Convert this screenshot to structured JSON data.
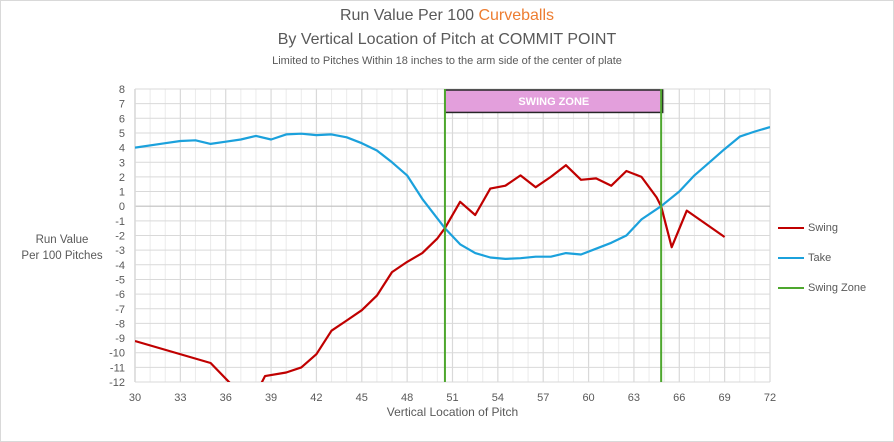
{
  "title": {
    "line1_prefix": "Run Value Per 100 ",
    "line1_accent": "Curveballs",
    "line2": "By Vertical Location of Pitch at COMMIT POINT",
    "line3": "Limited to Pitches Within 18 inches to the arm side of the center of plate"
  },
  "colors": {
    "accent": "#ed7d31",
    "swing": "#c00000",
    "take": "#1ba1dc",
    "swing_zone": "#4ea72e",
    "zone_box_fill": "#e39fdc",
    "zone_box_border": "#262626"
  },
  "chart_data": {
    "type": "line",
    "title": "Run Value Per 100 Curveballs — By Vertical Location of Pitch at COMMIT POINT",
    "subtitle": "Limited to Pitches Within 18 inches to the arm side of the center of plate",
    "xlabel": "Vertical Location of Pitch",
    "ylabel_lines": [
      "Run Value",
      "Per 100 Pitches"
    ],
    "xlim": [
      30,
      72
    ],
    "ylim": [
      -12,
      8
    ],
    "xticks": [
      30,
      33,
      36,
      39,
      42,
      45,
      48,
      51,
      54,
      57,
      60,
      63,
      66,
      69,
      72
    ],
    "yticks": [
      8,
      7,
      6,
      5,
      4,
      3,
      2,
      1,
      0,
      -1,
      -2,
      -3,
      -4,
      -5,
      -6,
      -7,
      -8,
      -9,
      -10,
      -11,
      -12
    ],
    "grid": true,
    "legend_position": "right",
    "series": [
      {
        "name": "Swing",
        "color": "#c00000",
        "points": [
          [
            30,
            -9.2
          ],
          [
            35,
            -10.7
          ],
          [
            36.4,
            -12.2
          ],
          [
            38.3,
            -12.2
          ],
          [
            38.6,
            -11.6
          ],
          [
            40,
            -11.35
          ],
          [
            41,
            -11.0
          ],
          [
            42,
            -10.1
          ],
          [
            43,
            -8.5
          ],
          [
            44,
            -7.8
          ],
          [
            45,
            -7.1
          ],
          [
            46,
            -6.1
          ],
          [
            47,
            -4.5
          ],
          [
            48,
            -3.8
          ],
          [
            49,
            -3.2
          ],
          [
            50,
            -2.2
          ],
          [
            50.5,
            -1.5
          ],
          [
            51.5,
            0.3
          ],
          [
            52.5,
            -0.6
          ],
          [
            53.5,
            1.2
          ],
          [
            54.5,
            1.4
          ],
          [
            55.5,
            2.1
          ],
          [
            56.5,
            1.3
          ],
          [
            57.5,
            2.0
          ],
          [
            58.5,
            2.8
          ],
          [
            59.5,
            1.8
          ],
          [
            60.5,
            1.9
          ],
          [
            61.5,
            1.4
          ],
          [
            62.5,
            2.4
          ],
          [
            63.5,
            2.0
          ],
          [
            64.5,
            0.6
          ],
          [
            64.8,
            0.0
          ],
          [
            65.5,
            -2.8
          ],
          [
            66.5,
            -0.3
          ],
          [
            69,
            -2.1
          ]
        ]
      },
      {
        "name": "Take",
        "color": "#1ba1dc",
        "points": [
          [
            30,
            4.0
          ],
          [
            32,
            4.3
          ],
          [
            33,
            4.45
          ],
          [
            34,
            4.5
          ],
          [
            35,
            4.25
          ],
          [
            36,
            4.4
          ],
          [
            37,
            4.55
          ],
          [
            38,
            4.8
          ],
          [
            39,
            4.55
          ],
          [
            40,
            4.9
          ],
          [
            41,
            4.95
          ],
          [
            42,
            4.85
          ],
          [
            43,
            4.9
          ],
          [
            44,
            4.7
          ],
          [
            45,
            4.3
          ],
          [
            46,
            3.8
          ],
          [
            47,
            3.0
          ],
          [
            48,
            2.1
          ],
          [
            49,
            0.5
          ],
          [
            50.5,
            -1.5
          ],
          [
            51.5,
            -2.6
          ],
          [
            52.5,
            -3.2
          ],
          [
            53.5,
            -3.5
          ],
          [
            54.5,
            -3.6
          ],
          [
            55.5,
            -3.55
          ],
          [
            56.5,
            -3.45
          ],
          [
            57.5,
            -3.45
          ],
          [
            58.5,
            -3.2
          ],
          [
            59.5,
            -3.3
          ],
          [
            60.5,
            -2.9
          ],
          [
            61.5,
            -2.5
          ],
          [
            62.5,
            -2.0
          ],
          [
            63.5,
            -0.9
          ],
          [
            64.8,
            0.0
          ],
          [
            66,
            1.0
          ],
          [
            67,
            2.1
          ],
          [
            68,
            3.0
          ],
          [
            69,
            3.9
          ],
          [
            70,
            4.75
          ],
          [
            71,
            5.1
          ],
          [
            72,
            5.4
          ]
        ]
      },
      {
        "name": "Swing Zone",
        "color": "#4ea72e",
        "vertical_lines_x": [
          50.5,
          64.8
        ]
      }
    ],
    "annotations": [
      {
        "text": "SWING ZONE",
        "x_range": [
          50.5,
          64.9
        ],
        "y_range": [
          6.4,
          8
        ]
      }
    ]
  },
  "legend": {
    "items": [
      {
        "label": "Swing",
        "color": "#c00000"
      },
      {
        "label": "Take",
        "color": "#1ba1dc"
      },
      {
        "label": "Swing Zone",
        "color": "#4ea72e"
      }
    ]
  }
}
